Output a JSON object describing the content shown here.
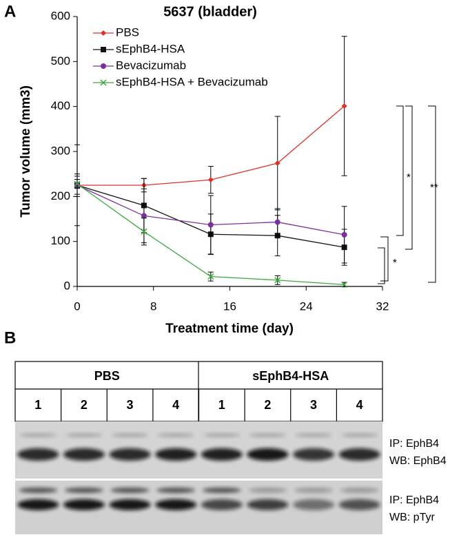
{
  "chart_data": {
    "type": "line",
    "panel_label": "A",
    "title": "5637 (bladder)",
    "x_label": "Treatment time (day)",
    "y_label": "Tumor volume (mm3)",
    "x": [
      0,
      7,
      14,
      21,
      28
    ],
    "xlim": [
      0,
      32
    ],
    "xticks": [
      0,
      8,
      16,
      24,
      32
    ],
    "ylim": [
      0,
      600
    ],
    "yticks": [
      0,
      100,
      200,
      300,
      400,
      500,
      600
    ],
    "series": [
      {
        "name": "PBS",
        "color": "#e0302a",
        "marker": "diamond",
        "values": [
          225,
          225,
          237,
          274,
          401
        ],
        "errors": [
          90,
          15,
          30,
          104,
          155
        ]
      },
      {
        "name": "sEphB4-HSA",
        "color": "#111111",
        "marker": "square",
        "values": [
          225,
          180,
          116,
          113,
          87
        ],
        "errors": [
          25,
          60,
          45,
          45,
          40
        ]
      },
      {
        "name": "Bevacizumab",
        "color": "#7b30a0",
        "marker": "circle",
        "values": [
          225,
          157,
          137,
          143,
          115
        ],
        "errors": [
          20,
          60,
          65,
          30,
          63
        ]
      },
      {
        "name": "sEphB4-HSA + Bevacizumab",
        "color": "#3aa83a",
        "marker": "x",
        "values": [
          228,
          122,
          22,
          14,
          4
        ],
        "errors": [
          10,
          30,
          10,
          10,
          5
        ]
      }
    ],
    "annotations": [
      "*",
      "*",
      "**"
    ]
  },
  "blot": {
    "label": "B",
    "groups": [
      "PBS",
      "sEphB4-HSA"
    ],
    "lanes": [
      "1",
      "2",
      "3",
      "4",
      "1",
      "2",
      "3",
      "4"
    ],
    "panels": [
      {
        "ip": "IP: EphB4",
        "wb": "WB: EphB4"
      },
      {
        "ip": "IP: EphB4",
        "wb": "WB: pTyr"
      }
    ]
  }
}
